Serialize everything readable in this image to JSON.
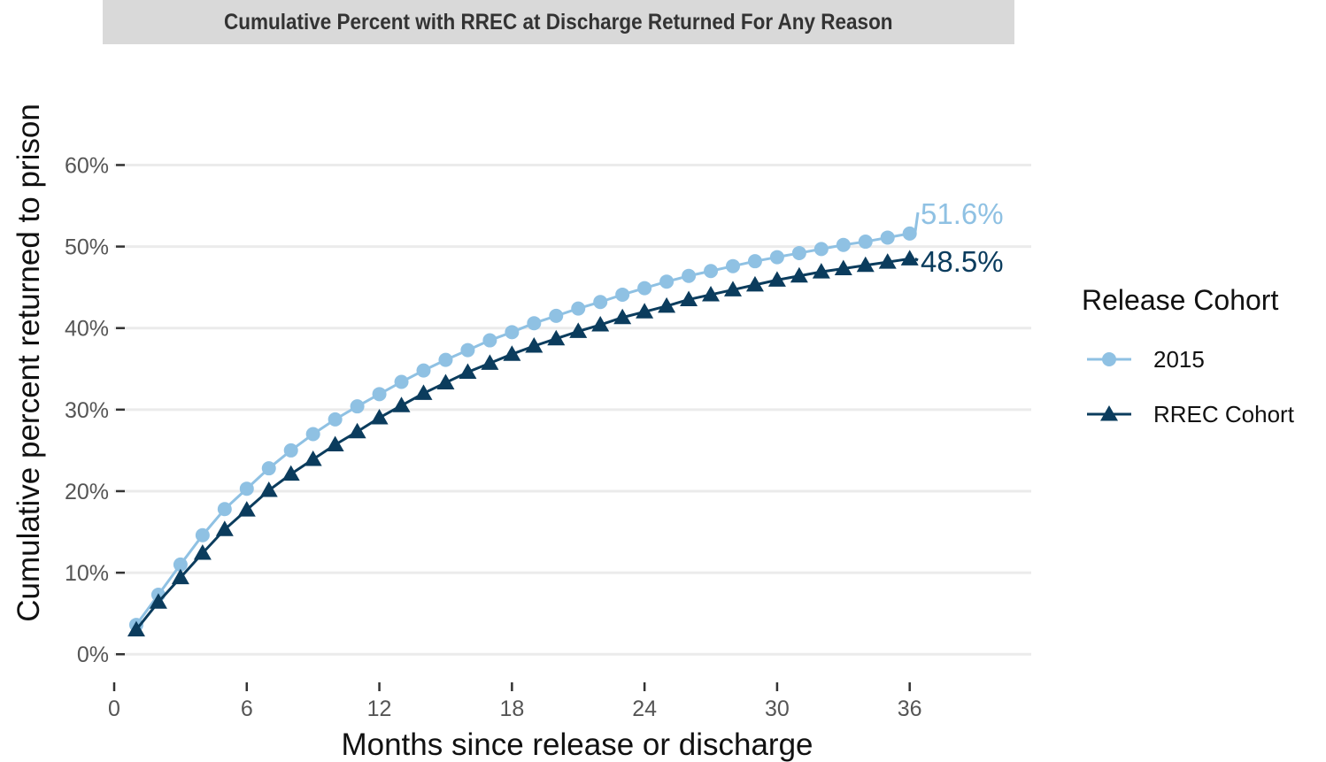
{
  "chart_data": {
    "type": "line",
    "title": "Cumulative Percent with RREC at Discharge Returned For Any Reason",
    "xlabel": "Months since release or discharge",
    "ylabel": "Cumulative percent returned to prison",
    "xlim": [
      0,
      41.5
    ],
    "ylim": [
      -0.3,
      64.5
    ],
    "x_ticks": [
      0,
      6,
      12,
      18,
      24,
      30,
      36
    ],
    "y_ticks": [
      0,
      10,
      20,
      30,
      40,
      50,
      60
    ],
    "y_tick_labels": [
      "0%",
      "10%",
      "20%",
      "30%",
      "40%",
      "50%",
      "60%"
    ],
    "grid": true,
    "legend": {
      "title": "Release Cohort",
      "position": "right"
    },
    "x": [
      1,
      2,
      3,
      4,
      5,
      6,
      7,
      8,
      9,
      10,
      11,
      12,
      13,
      14,
      15,
      16,
      17,
      18,
      19,
      20,
      21,
      22,
      23,
      24,
      25,
      26,
      27,
      28,
      29,
      30,
      31,
      32,
      33,
      34,
      35,
      36
    ],
    "series": [
      {
        "name": "2015",
        "color": "#8fc1e3",
        "marker": "circle",
        "end_label": "51.6%",
        "values": [
          3.6,
          7.3,
          11.0,
          14.6,
          17.8,
          20.3,
          22.8,
          25.0,
          27.0,
          28.8,
          30.4,
          31.9,
          33.4,
          34.8,
          36.1,
          37.3,
          38.5,
          39.5,
          40.6,
          41.5,
          42.4,
          43.2,
          44.1,
          44.9,
          45.7,
          46.4,
          47.0,
          47.6,
          48.2,
          48.7,
          49.2,
          49.7,
          50.2,
          50.6,
          51.1,
          51.6
        ]
      },
      {
        "name": "RREC Cohort",
        "color": "#0b3c5d",
        "marker": "triangle",
        "end_label": "48.5%",
        "values": [
          3.0,
          6.4,
          9.4,
          12.4,
          15.3,
          17.7,
          20.1,
          22.1,
          23.9,
          25.7,
          27.3,
          29.0,
          30.5,
          32.0,
          33.3,
          34.6,
          35.7,
          36.8,
          37.8,
          38.7,
          39.6,
          40.4,
          41.3,
          42.0,
          42.7,
          43.5,
          44.1,
          44.7,
          45.3,
          45.9,
          46.4,
          46.9,
          47.3,
          47.7,
          48.1,
          48.5
        ]
      }
    ]
  }
}
